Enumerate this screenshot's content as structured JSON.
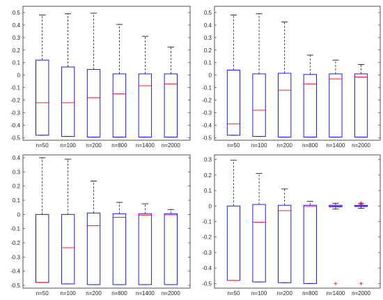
{
  "colors": {
    "box": "#0000ff",
    "median": "#ff0000",
    "whisker": "#000000",
    "outlier": "#ff0000",
    "axis": "#262626"
  },
  "chart_data": [
    {
      "type": "box",
      "categories": [
        "n=50",
        "n=100",
        "n=200",
        "n=800",
        "n=1400",
        "n=2000"
      ],
      "ylim": [
        -0.52,
        0.55
      ],
      "yticks": [
        -0.5,
        -0.4,
        -0.3,
        -0.2,
        -0.1,
        0,
        0.1,
        0.2,
        0.3,
        0.4,
        0.5
      ],
      "yticklabels": [
        "-0.5",
        "-0.4",
        "-0.3",
        "-0.2",
        "-0.1",
        "0",
        "0.1",
        "0.2",
        "0.3",
        "0.4",
        "0.5"
      ],
      "boxes": [
        {
          "whisker_low": -0.48,
          "q1": -0.48,
          "median": -0.22,
          "q3": 0.12,
          "whisker_high": 0.48,
          "outliers": []
        },
        {
          "whisker_low": -0.49,
          "q1": -0.49,
          "median": -0.22,
          "q3": 0.065,
          "whisker_high": 0.49,
          "outliers": []
        },
        {
          "whisker_low": -0.495,
          "q1": -0.495,
          "median": -0.18,
          "q3": 0.045,
          "whisker_high": 0.495,
          "outliers": []
        },
        {
          "whisker_low": -0.495,
          "q1": -0.495,
          "median": -0.15,
          "q3": 0.01,
          "whisker_high": 0.405,
          "outliers": []
        },
        {
          "whisker_low": -0.495,
          "q1": -0.495,
          "median": -0.085,
          "q3": 0.01,
          "whisker_high": 0.31,
          "outliers": []
        },
        {
          "whisker_low": -0.495,
          "q1": -0.495,
          "median": -0.07,
          "q3": 0.01,
          "whisker_high": 0.225,
          "outliers": []
        }
      ]
    },
    {
      "type": "box",
      "categories": [
        "n=50",
        "n=100",
        "n=200",
        "n=800",
        "n=1400",
        "n=2000"
      ],
      "ylim": [
        -0.52,
        0.55
      ],
      "yticks": [
        -0.5,
        -0.4,
        -0.3,
        -0.2,
        -0.1,
        0,
        0.1,
        0.2,
        0.3,
        0.4,
        0.5
      ],
      "yticklabels": [
        "-0.5",
        "-0.4",
        "-0.3",
        "-0.2",
        "-0.1",
        "0",
        "0.1",
        "0.2",
        "0.3",
        "0.4",
        "0.5"
      ],
      "boxes": [
        {
          "whisker_low": -0.48,
          "q1": -0.48,
          "median": -0.39,
          "q3": 0.04,
          "whisker_high": 0.48,
          "outliers": []
        },
        {
          "whisker_low": -0.49,
          "q1": -0.49,
          "median": -0.28,
          "q3": 0.01,
          "whisker_high": 0.49,
          "outliers": []
        },
        {
          "whisker_low": -0.495,
          "q1": -0.495,
          "median": -0.12,
          "q3": 0.015,
          "whisker_high": 0.425,
          "outliers": []
        },
        {
          "whisker_low": -0.495,
          "q1": -0.495,
          "median": -0.07,
          "q3": 0.005,
          "whisker_high": 0.16,
          "outliers": []
        },
        {
          "whisker_low": -0.495,
          "q1": -0.495,
          "median": -0.03,
          "q3": 0.01,
          "whisker_high": 0.12,
          "outliers": []
        },
        {
          "whisker_low": -0.495,
          "q1": -0.495,
          "median": -0.015,
          "q3": 0.01,
          "whisker_high": 0.085,
          "outliers": []
        }
      ]
    },
    {
      "type": "box",
      "categories": [
        "n=50",
        "n=100",
        "n=200",
        "n=800",
        "n=1400",
        "n=2000"
      ],
      "ylim": [
        -0.52,
        0.42
      ],
      "yticks": [
        -0.5,
        -0.4,
        -0.3,
        -0.2,
        -0.1,
        0,
        0.1,
        0.2,
        0.3,
        0.4
      ],
      "yticklabels": [
        "-0.5",
        "-0.4",
        "-0.3",
        "-0.2",
        "-0.1",
        "0",
        "0.1",
        "0.2",
        "0.3",
        "0.4"
      ],
      "boxes": [
        {
          "whisker_low": -0.48,
          "q1": -0.48,
          "median": -0.48,
          "q3": 0.0,
          "whisker_high": 0.4,
          "outliers": []
        },
        {
          "whisker_low": -0.49,
          "q1": -0.49,
          "median": -0.235,
          "q3": 0.0,
          "whisker_high": 0.39,
          "outliers": []
        },
        {
          "whisker_low": -0.495,
          "q1": -0.495,
          "median": -0.08,
          "q3": 0.01,
          "whisker_high": 0.235,
          "outliers": []
        },
        {
          "whisker_low": -0.495,
          "q1": -0.495,
          "median": -0.02,
          "q3": 0.005,
          "whisker_high": 0.085,
          "outliers": []
        },
        {
          "whisker_low": -0.495,
          "q1": -0.495,
          "median": -0.005,
          "q3": 0.005,
          "whisker_high": 0.075,
          "outliers": []
        },
        {
          "whisker_low": -0.495,
          "q1": -0.495,
          "median": -0.003,
          "q3": 0.005,
          "whisker_high": 0.035,
          "outliers": []
        }
      ]
    },
    {
      "type": "box",
      "categories": [
        "n=50",
        "n=100",
        "n=200",
        "n=800",
        "n=1400",
        "n=2000"
      ],
      "ylim": [
        -0.53,
        0.33
      ],
      "yticks": [
        -0.5,
        -0.4,
        -0.3,
        -0.2,
        -0.1,
        0,
        0.1,
        0.2,
        0.3
      ],
      "yticklabels": [
        "-0.5",
        "-0.4",
        "-0.3",
        "-0.2",
        "-0.1",
        "0",
        "0.1",
        "0.2",
        "0.3"
      ],
      "boxes": [
        {
          "whisker_low": -0.48,
          "q1": -0.48,
          "median": -0.48,
          "q3": 0.0,
          "whisker_high": 0.295,
          "outliers": []
        },
        {
          "whisker_low": -0.49,
          "q1": -0.49,
          "median": -0.105,
          "q3": 0.01,
          "whisker_high": 0.21,
          "outliers": []
        },
        {
          "whisker_low": -0.495,
          "q1": -0.495,
          "median": -0.03,
          "q3": 0.005,
          "whisker_high": 0.11,
          "outliers": []
        },
        {
          "whisker_low": -0.5,
          "q1": -0.5,
          "median": -0.003,
          "q3": 0.005,
          "whisker_high": 0.03,
          "outliers": []
        },
        {
          "whisker_low": -0.02,
          "q1": -0.005,
          "median": 0.0,
          "q3": 0.005,
          "whisker_high": 0.018,
          "outliers": [
            -0.5
          ]
        },
        {
          "whisker_low": -0.015,
          "q1": -0.003,
          "median": 0.0,
          "q3": 0.004,
          "whisker_high": 0.015,
          "outliers": [
            -0.5,
            0.02,
            0.01
          ]
        }
      ]
    }
  ]
}
